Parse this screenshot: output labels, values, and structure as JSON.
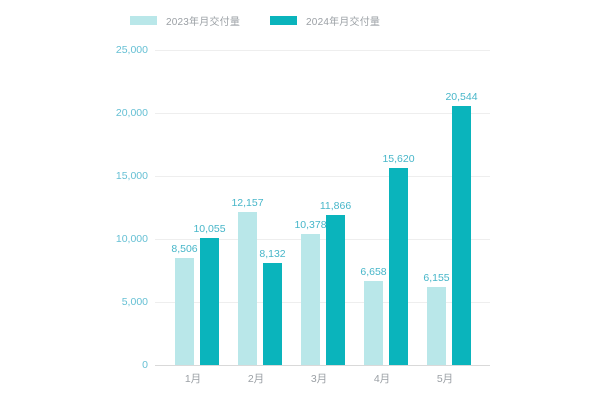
{
  "colors": {
    "series_2023": "#b9e7e9",
    "series_2024": "#0ab4bc",
    "value_label": "#47b6c9",
    "y_axis_label": "#66c0d4",
    "x_axis_label": "#9ba0a5",
    "legend_text": "#9ba0a5",
    "gridline": "#eeeeee",
    "axis_line": "#d9d9d9"
  },
  "chart_data": {
    "type": "bar",
    "title": "",
    "categories": [
      "1月",
      "2月",
      "3月",
      "4月",
      "5月"
    ],
    "series": [
      {
        "name": "2023年月交付量",
        "color_key": "series_2023",
        "values": [
          8506,
          12157,
          10378,
          6658,
          6155
        ],
        "labels": [
          "8,506",
          "12,157",
          "10,378",
          "6,658",
          "6,155"
        ]
      },
      {
        "name": "2024年月交付量",
        "color_key": "series_2024",
        "values": [
          10055,
          8132,
          11866,
          15620,
          20544
        ],
        "labels": [
          "10,055",
          "8,132",
          "11,866",
          "15,620",
          "20,544"
        ]
      }
    ],
    "xlabel": "",
    "ylabel": "",
    "ylim": [
      0,
      25000
    ],
    "yticks": [
      {
        "value": 0,
        "label": "0"
      },
      {
        "value": 5000,
        "label": "5,000"
      },
      {
        "value": 10000,
        "label": "10,000"
      },
      {
        "value": 15000,
        "label": "15,000"
      },
      {
        "value": 20000,
        "label": "20,000"
      },
      {
        "value": 25000,
        "label": "25,000"
      }
    ],
    "grid": true,
    "legend_position": "top"
  }
}
